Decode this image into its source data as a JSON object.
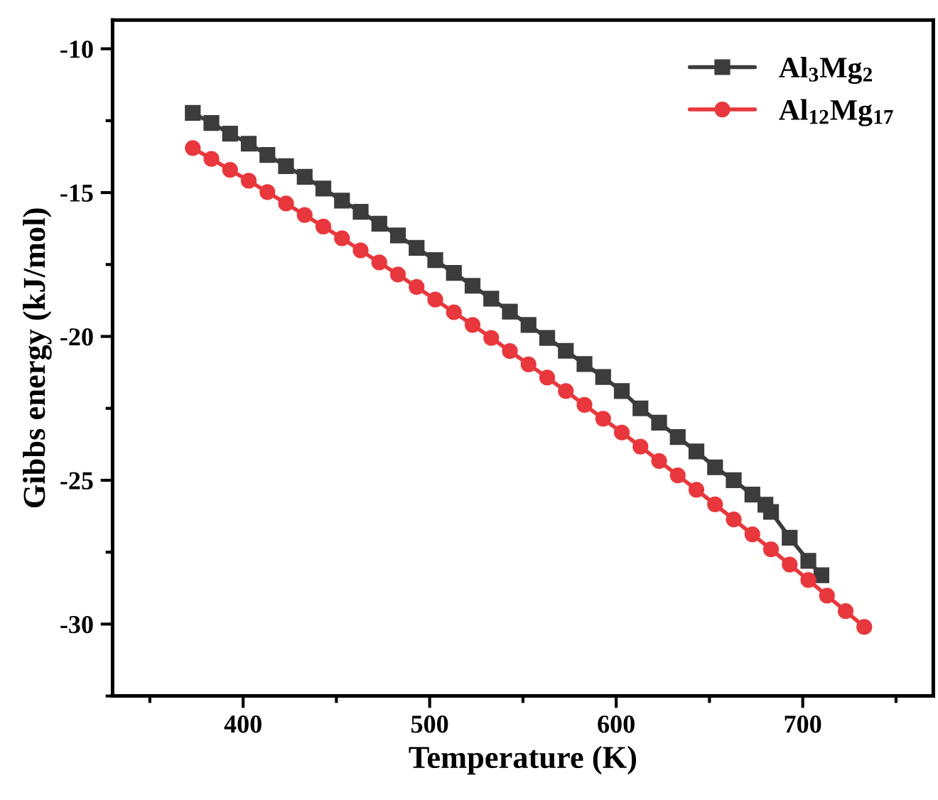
{
  "chart_data": {
    "type": "line",
    "xlabel": "Temperature (K)",
    "ylabel": "Gibbs energy (kJ/mol)",
    "xlim": [
      330,
      770
    ],
    "xticks": [
      400,
      500,
      600,
      700
    ],
    "ylim": [
      -32.5,
      -9
    ],
    "yticks": [
      -10,
      -15,
      -20,
      -25,
      -30
    ],
    "grid": false,
    "legend": "top right",
    "line_style": "solid",
    "series": [
      {
        "name": "Al$_{3}$Mg$_{2}$",
        "color": "#3c3c3c",
        "marker": "square",
        "x": [
          373,
          383,
          393,
          403,
          413,
          423,
          433,
          443,
          453,
          463,
          473,
          483,
          493,
          503,
          513,
          523,
          533,
          543,
          553,
          563,
          573,
          583,
          593,
          603,
          613,
          623,
          633,
          643,
          653,
          663,
          673,
          680,
          683,
          693,
          703,
          710
        ],
        "values": [
          -12.23,
          -12.58,
          -12.95,
          -13.3,
          -13.69,
          -14.08,
          -14.45,
          -14.86,
          -15.28,
          -15.67,
          -16.08,
          -16.49,
          -16.92,
          -17.35,
          -17.79,
          -18.24,
          -18.69,
          -19.14,
          -19.6,
          -20.05,
          -20.5,
          -20.96,
          -21.41,
          -21.9,
          -22.5,
          -23.0,
          -23.5,
          -24.0,
          -24.55,
          -25.0,
          -25.5,
          -25.85,
          -26.1,
          -27.0,
          -27.8,
          -28.3
        ]
      },
      {
        "name": "Al$_{12}$Mg$_{17}$",
        "color": "#e8383d",
        "marker": "circle",
        "x": [
          373,
          383,
          393,
          403,
          413,
          423,
          433,
          443,
          453,
          463,
          473,
          483,
          493,
          503,
          513,
          523,
          533,
          543,
          553,
          563,
          573,
          583,
          593,
          603,
          613,
          623,
          633,
          643,
          653,
          663,
          673,
          683,
          693,
          703,
          713,
          723,
          733
        ],
        "values": [
          -13.45,
          -13.83,
          -14.21,
          -14.59,
          -14.98,
          -15.38,
          -15.78,
          -16.18,
          -16.59,
          -17.01,
          -17.43,
          -17.85,
          -18.28,
          -18.72,
          -19.16,
          -19.6,
          -20.05,
          -20.51,
          -20.97,
          -21.43,
          -21.9,
          -22.38,
          -22.86,
          -23.34,
          -23.83,
          -24.33,
          -24.83,
          -25.33,
          -25.84,
          -26.36,
          -26.88,
          -27.4,
          -27.93,
          -28.47,
          -29.01,
          -29.55,
          -30.1
        ]
      }
    ]
  }
}
